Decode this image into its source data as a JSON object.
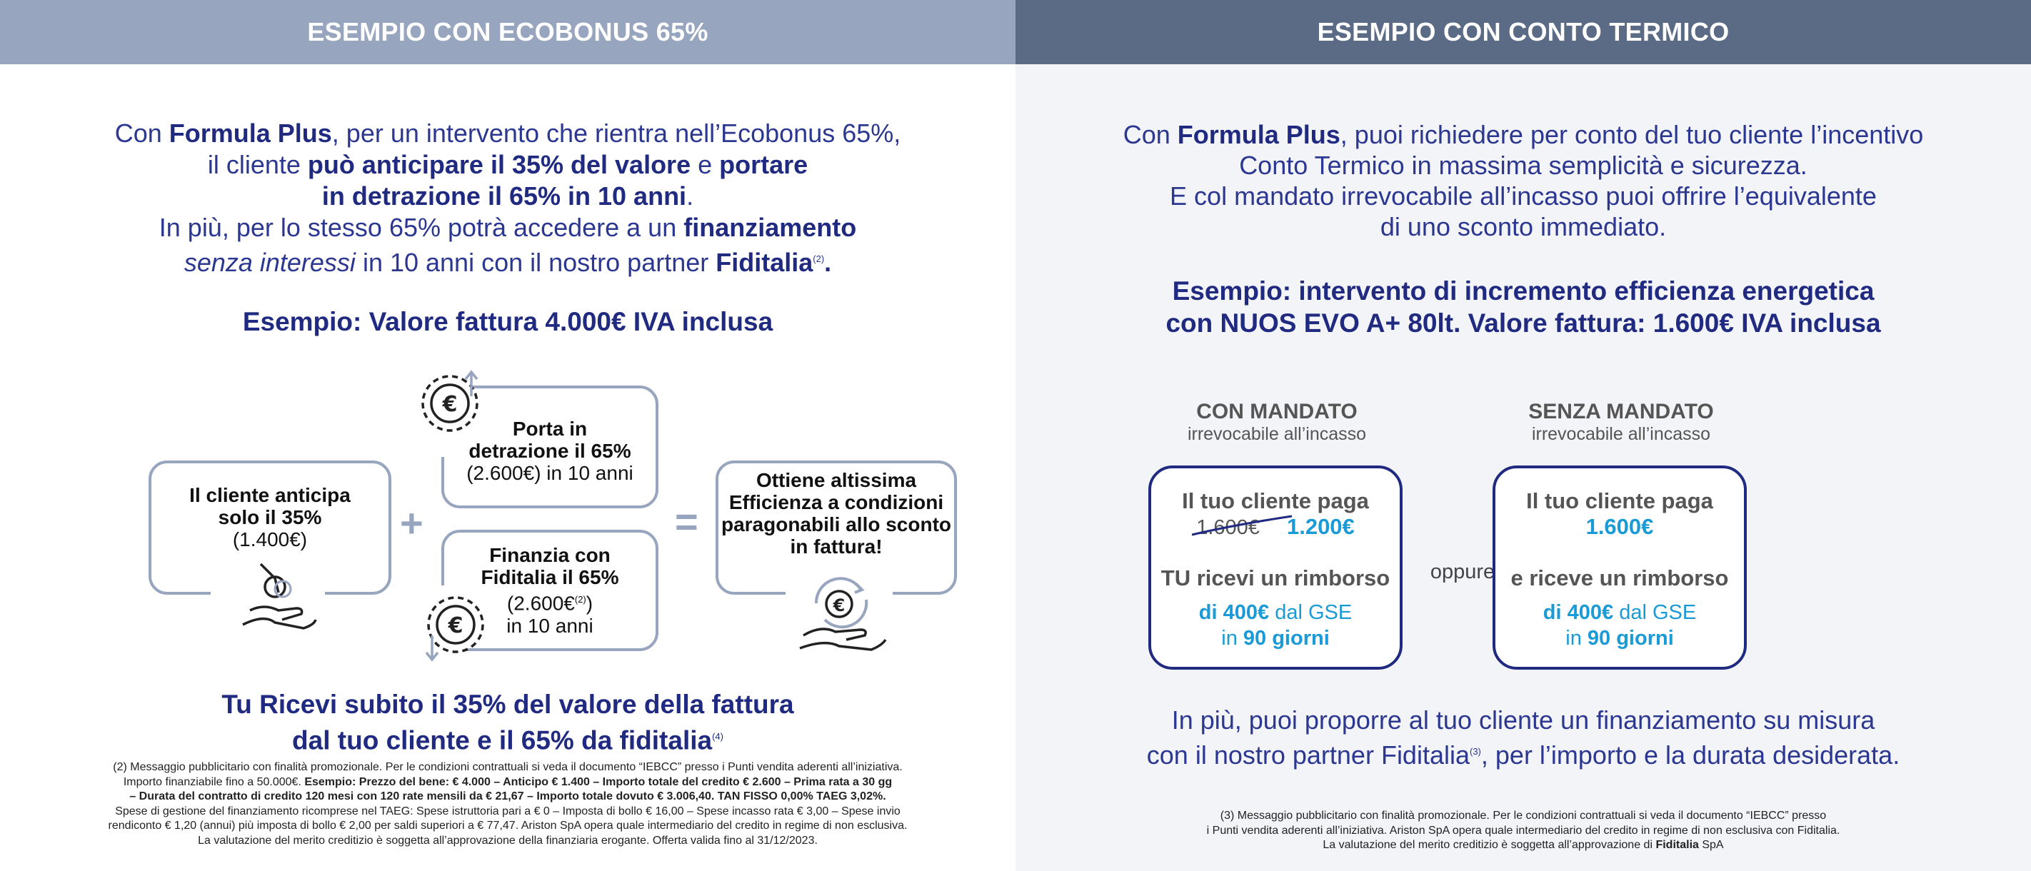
{
  "left": {
    "header": "ESEMPIO CON ECOBONUS 65%",
    "intro": {
      "l1a": "Con ",
      "l1b": "Formula Plus",
      "l1c": ", per un intervento che rientra nell’Ecobonus 65%,",
      "l2a": "il cliente ",
      "l2b": "può anticipare il 35% del valore",
      "l2c": " e ",
      "l2d": "portare",
      "l3a": "in detrazione il 65% in 10 anni",
      "l3b": ".",
      "l4a": "In più, per lo stesso 65% potrà accedere a un ",
      "l4b": "finanziamento",
      "l5a": "senza interessi",
      "l5b": " in 10 anni con il nostro partner ",
      "l5c": "Fiditalia",
      "l5sup": "(2)",
      "l5d": "."
    },
    "example_title": "Esempio: Valore fattura 4.000€ IVA inclusa",
    "box_anticipa": {
      "l1": "Il cliente anticipa",
      "l2": "solo il 35%",
      "l3": "(1.400€)"
    },
    "plus": "+",
    "box_detrazione": {
      "l1": "Porta in",
      "l2": "detrazione il 65%",
      "l3": "(2.600€) in 10 anni"
    },
    "box_finanzia": {
      "l1": "Finanzia con",
      "l2": "Fiditalia il 65%",
      "l3a": "(2.600€",
      "l3sup": "(2)",
      "l3b": ")",
      "l4": "in 10 anni"
    },
    "equals": "=",
    "box_ottiene": {
      "l1": "Ottiene altissima",
      "l2": "Efficienza a condizioni",
      "l3": "paragonabili allo sconto",
      "l4": "in fattura!"
    },
    "euro_symbol": "€",
    "summary": {
      "l1": "Tu Ricevi subito il 35% del valore della fattura",
      "l2": "dal tuo cliente e il 65% da fiditalia",
      "sup": "(4)"
    },
    "footnote": {
      "l1": "(2) Messaggio pubblicitario con finalità promozionale. Per le condizioni contrattuali si veda il documento “IEBCC” presso i Punti vendita aderenti all’iniziativa.",
      "l2a": "Importo finanziabile fino a 50.000€. ",
      "l2b": "Esempio: Prezzo del bene: € 4.000 – Anticipo € 1.400 – Importo totale del credito € 2.600 – Prima rata a 30 gg",
      "l3": "– Durata del contratto di credito 120 mesi con 120 rate mensili da € 21,67 – Importo totale dovuto € 3.006,40. TAN FISSO 0,00% TAEG 3,02%.",
      "l4": "Spese di gestione del finanziamento ricomprese nel TAEG: Spese istruttoria pari a € 0 – Imposta di bollo € 16,00 – Spese incasso rata € 3,00 – Spese invio",
      "l5": "rendiconto € 1,20 (annui) più imposta di bollo € 2,00 per saldi superiori a € 77,47. Ariston SpA opera quale intermediario del credito in regime di non esclusiva.",
      "l6": "La valutazione del merito creditizio è soggetta all’approvazione della finanziaria erogante. Offerta valida fino al 31/12/2023."
    }
  },
  "right": {
    "header": "ESEMPIO CON CONTO TERMICO",
    "intro": {
      "l1a": "Con ",
      "l1b": "Formula Plus",
      "l1c": ", puoi richiedere per conto del tuo cliente l’incentivo",
      "l2": "Conto Termico in massima semplicità e sicurezza.",
      "l3": "E col mandato irrevocabile all’incasso puoi offrire l’equivalente",
      "l4": "di uno sconto immediato."
    },
    "example": {
      "l1": "Esempio: intervento di incremento efficienza energetica",
      "l2": "con NUOS EVO A+ 80lt. Valore fattura: 1.600€ IVA inclusa"
    },
    "con_mandato": {
      "title": "CON MANDATO",
      "subtitle": "irrevocabile all’incasso",
      "paga_label": "Il tuo cliente paga",
      "old_price": "1.600€",
      "new_price": "1.200€",
      "rimborso_label": "TU ricevi un rimborso",
      "amount": "di 400€",
      "amount_suffix": " dal GSE",
      "days_prefix": "in ",
      "days": "90 giorni"
    },
    "oppure": "oppure",
    "senza_mandato": {
      "title": "SENZA MANDATO",
      "subtitle": "irrevocabile all’incasso",
      "paga_label": "Il tuo cliente paga",
      "price": "1.600€",
      "rimborso_label": "e riceve un rimborso",
      "amount": "di 400€",
      "amount_suffix": " dal GSE",
      "days_prefix": "in ",
      "days": "90 giorni"
    },
    "closing": {
      "l1": "In più, puoi proporre al tuo cliente un finanziamento su misura",
      "l2a": "con il nostro partner Fiditalia",
      "l2sup": "(3)",
      "l2b": ", per l’importo e la durata desiderata."
    },
    "footnote": {
      "l1": "(3) Messaggio pubblicitario con finalità promozionale. Per le condizioni contrattuali si veda il documento “IEBCC” presso",
      "l2": "i Punti vendita aderenti all’iniziativa. Ariston SpA opera quale intermediario del credito in regime di non esclusiva con Fiditalia.",
      "l3a": "La valutazione del merito creditizio è soggetta all’approvazione di ",
      "l3b": "Fiditalia",
      "l3c": " SpA"
    }
  },
  "colors": {
    "left_header": "#97a5be",
    "right_header": "#5b6b86",
    "navy": "#1f2a80",
    "accent_blue": "#1a9ad6",
    "box_border": "#97a5be"
  }
}
